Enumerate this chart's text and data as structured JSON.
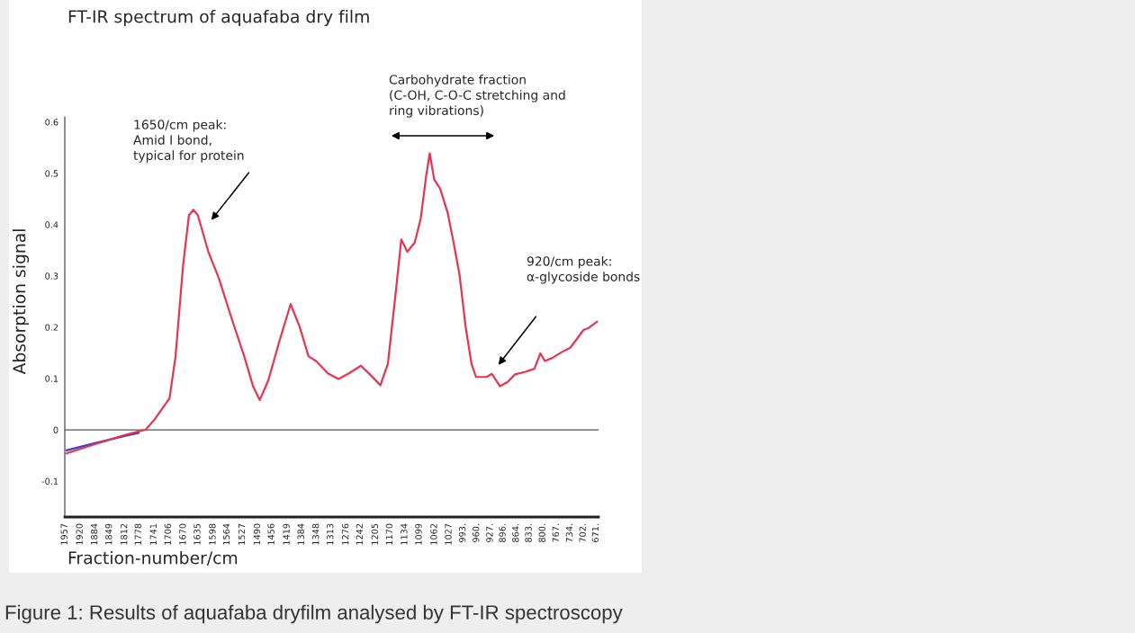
{
  "chart_data": {
    "type": "line",
    "title": "FT-IR spectrum of aquafaba dry film",
    "xlabel": "Fraction-number/cm",
    "ylabel": "Absorption signal",
    "x": [
      1953,
      1884,
      1812,
      1778,
      1761.5,
      1740,
      1703.6,
      1689,
      1671,
      1656.6,
      1645.7,
      1634.8,
      1609.5,
      1584,
      1551.5,
      1522.6,
      1500.9,
      1485,
      1464.6,
      1435.7,
      1410.3,
      1388.6,
      1366.9,
      1348.8,
      1320,
      1294.5,
      1269.2,
      1240.2,
      1218.5,
      1193.1,
      1175.1,
      1157,
      1142.5,
      1128,
      1110,
      1095.4,
      1082.4,
      1073.7,
      1062.8,
      1048.4,
      1030.2,
      1015.9,
      1001.3,
      986.8,
      972.4,
      961.6,
      936.2,
      923.1,
      903.6,
      885.6,
      867.3,
      842.1,
      820.4,
      805.8,
      795,
      777,
      755.2,
      733.5,
      701,
      690,
      668.4
    ],
    "series": [
      {
        "color": "#3b3bd6",
        "values": [
          -0.04,
          -0.026,
          -0.012,
          -0.006,
          null,
          null,
          null,
          null,
          null,
          null,
          null,
          null,
          null,
          null,
          null,
          null,
          null,
          null,
          null,
          null,
          null,
          null,
          null,
          null,
          null,
          null,
          null,
          null,
          null,
          null,
          null,
          null,
          null,
          null,
          null,
          null,
          null,
          null,
          null,
          null,
          null,
          null,
          null,
          null,
          null,
          null,
          null,
          null,
          null,
          null,
          null,
          null,
          null,
          null,
          null,
          null,
          null,
          null,
          null,
          null,
          null
        ]
      },
      {
        "color": "#e8344e",
        "values": [
          -0.046,
          -0.028,
          -0.01,
          -0.003,
          0.0,
          0.02,
          0.061,
          0.143,
          0.318,
          0.418,
          0.429,
          0.418,
          0.347,
          0.295,
          0.213,
          0.143,
          0.084,
          0.058,
          0.096,
          0.178,
          0.245,
          0.201,
          0.143,
          0.134,
          0.11,
          0.099,
          0.11,
          0.125,
          0.108,
          0.087,
          0.128,
          0.26,
          0.371,
          0.347,
          0.365,
          0.412,
          0.494,
          0.539,
          0.488,
          0.47,
          0.423,
          0.365,
          0.301,
          0.201,
          0.128,
          0.103,
          0.103,
          0.109,
          0.085,
          0.093,
          0.108,
          0.113,
          0.119,
          0.149,
          0.134,
          0.14,
          0.151,
          0.16,
          0.195,
          0.198,
          0.211
        ]
      }
    ],
    "xlim": [
      1957,
      665
    ],
    "xticks": [
      1957,
      1920,
      1884,
      1849,
      1812,
      1778,
      1741,
      1706,
      1670,
      1635,
      1598,
      1564,
      1527,
      1490,
      1456,
      1419,
      1384,
      1348,
      1313,
      1276,
      1242,
      1205,
      1170,
      1134,
      1099,
      1062,
      1027,
      {
        "value": 993,
        "label": "993."
      },
      {
        "value": 960,
        "label": "960."
      },
      {
        "value": 927,
        "label": "927."
      },
      {
        "value": 896,
        "label": "896."
      },
      {
        "value": 864,
        "label": "864."
      },
      {
        "value": 833,
        "label": "833."
      },
      {
        "value": 800,
        "label": "800."
      },
      {
        "value": 767,
        "label": "767."
      },
      {
        "value": 734,
        "label": "734."
      },
      {
        "value": 702,
        "label": "702."
      },
      {
        "value": 671,
        "label": "671."
      }
    ],
    "ylim": [
      -0.17,
      0.61
    ],
    "yticks": [
      -0.1,
      0,
      0.1,
      0.2,
      0.3,
      0.4,
      0.5,
      0.6
    ],
    "ref_lines": [
      {
        "axis": "y",
        "value": 0,
        "color": "#555555"
      }
    ],
    "annotations": [
      "1650/cm peak:\nAmid I bond,\ntypical for protein",
      "Carbohydrate fraction\n(C-OH, C-O-C stretching and\nring vibrations)",
      "920/cm peak:\nα-glycoside bonds",
      "Figure 1: Results of aquafaba dryfilm analysed by FT-IR spectroscopy"
    ],
    "legend": false,
    "grid": false,
    "marker": "none",
    "line_style": "solid"
  }
}
